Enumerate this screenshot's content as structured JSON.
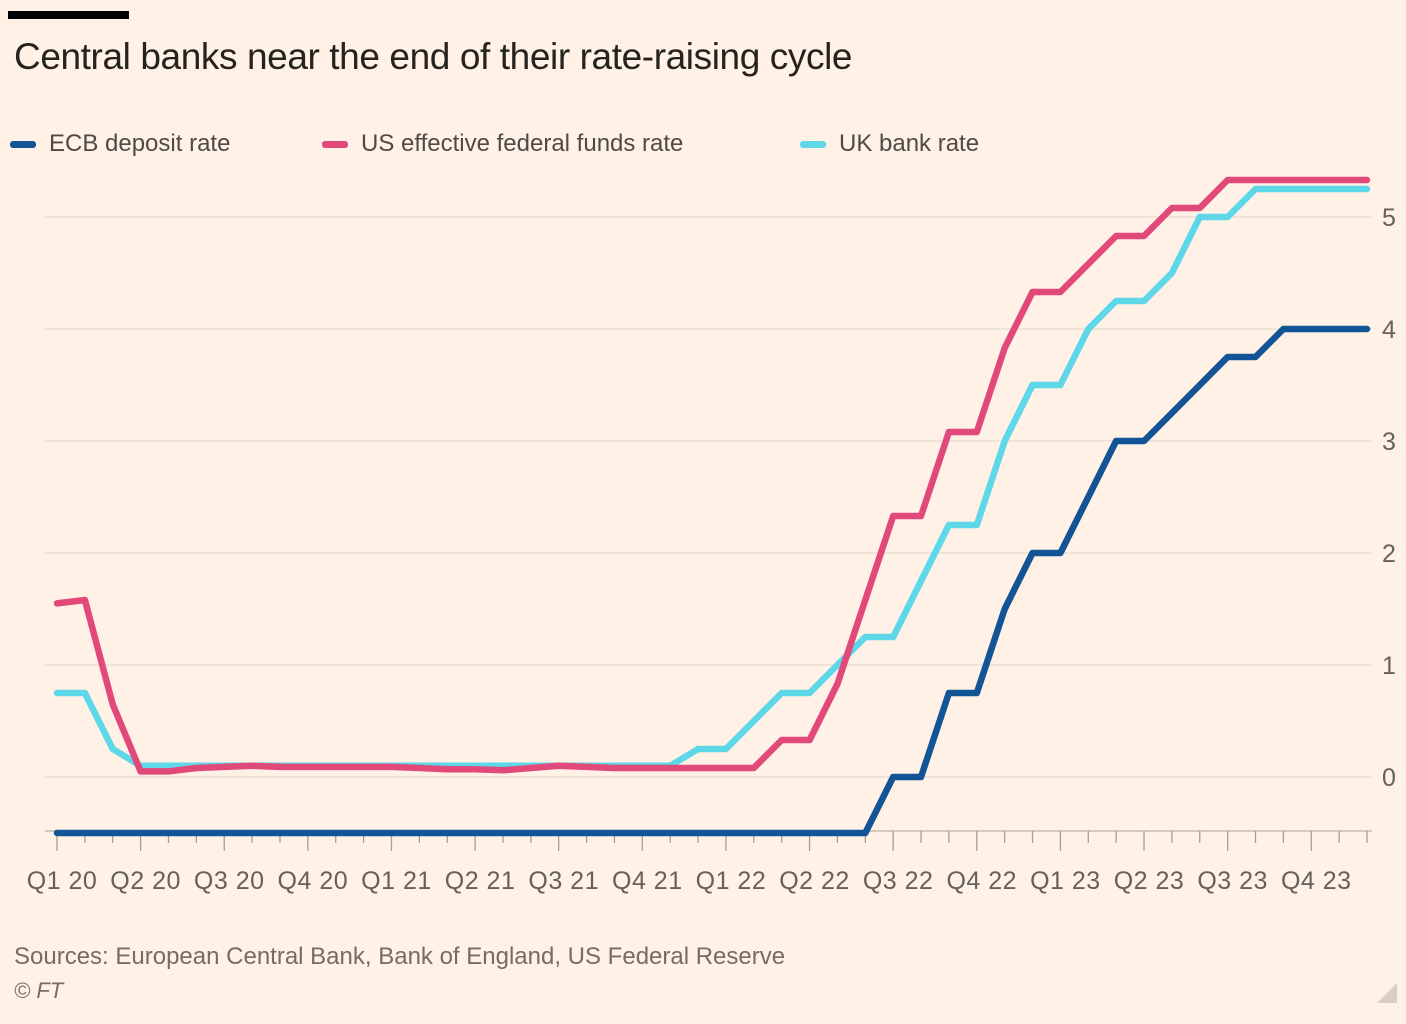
{
  "header": {
    "title": "Central banks near the end of their rate-raising cycle"
  },
  "legend": {
    "items": [
      {
        "label": "ECB deposit rate",
        "color": "#135496"
      },
      {
        "label": "US effective federal funds rate",
        "color": "#e2497b"
      },
      {
        "label": "UK bank rate",
        "color": "#5ed7e9"
      }
    ]
  },
  "footer": {
    "sources": "Sources: European Central Bank, Bank of England, US Federal Reserve",
    "copyright": "© FT"
  },
  "colors": {
    "background": "#fff1e5",
    "gridline": "#eadfd3",
    "axis_line": "#c9bdb1",
    "tick": "#a99d92",
    "axis_text": "#66605c",
    "title_text": "#26231e",
    "resize_triangle": "#d9cec2"
  },
  "chart_data": {
    "type": "line",
    "title": "Central banks near the end of their rate-raising cycle",
    "x_unit": "month",
    "x": [
      "2020-01",
      "2020-02",
      "2020-03",
      "2020-04",
      "2020-05",
      "2020-06",
      "2020-07",
      "2020-08",
      "2020-09",
      "2020-10",
      "2020-11",
      "2020-12",
      "2021-01",
      "2021-02",
      "2021-03",
      "2021-04",
      "2021-05",
      "2021-06",
      "2021-07",
      "2021-08",
      "2021-09",
      "2021-10",
      "2021-11",
      "2021-12",
      "2022-01",
      "2022-02",
      "2022-03",
      "2022-04",
      "2022-05",
      "2022-06",
      "2022-07",
      "2022-08",
      "2022-09",
      "2022-10",
      "2022-11",
      "2022-12",
      "2023-01",
      "2023-02",
      "2023-03",
      "2023-04",
      "2023-05",
      "2023-06",
      "2023-07",
      "2023-08",
      "2023-09",
      "2023-10",
      "2023-11",
      "2023-12"
    ],
    "xtick_labels": [
      "Q1 20",
      "Q2 20",
      "Q3 20",
      "Q4 20",
      "Q1 21",
      "Q2 21",
      "Q3 21",
      "Q4 21",
      "Q1 22",
      "Q2 22",
      "Q3 22",
      "Q4 22",
      "Q1 23",
      "Q2 23",
      "Q3 23",
      "Q4 23"
    ],
    "months_per_xtick": 3,
    "ylim": [
      -0.5,
      5.5
    ],
    "yticks": [
      0,
      1,
      2,
      3,
      4,
      5
    ],
    "grid": "horizontal",
    "legend_position": "top",
    "series": [
      {
        "name": "ECB deposit rate",
        "color": "#135496",
        "values": [
          -0.5,
          -0.5,
          -0.5,
          -0.5,
          -0.5,
          -0.5,
          -0.5,
          -0.5,
          -0.5,
          -0.5,
          -0.5,
          -0.5,
          -0.5,
          -0.5,
          -0.5,
          -0.5,
          -0.5,
          -0.5,
          -0.5,
          -0.5,
          -0.5,
          -0.5,
          -0.5,
          -0.5,
          -0.5,
          -0.5,
          -0.5,
          -0.5,
          -0.5,
          -0.5,
          0.0,
          0.0,
          0.75,
          0.75,
          1.5,
          2.0,
          2.0,
          2.5,
          3.0,
          3.0,
          3.25,
          3.5,
          3.75,
          3.75,
          4.0,
          4.0,
          4.0,
          4.0
        ]
      },
      {
        "name": "US effective federal funds rate",
        "color": "#e2497b",
        "values": [
          1.55,
          1.58,
          0.65,
          0.05,
          0.05,
          0.08,
          0.09,
          0.1,
          0.09,
          0.09,
          0.09,
          0.09,
          0.09,
          0.08,
          0.07,
          0.07,
          0.06,
          0.08,
          0.1,
          0.09,
          0.08,
          0.08,
          0.08,
          0.08,
          0.08,
          0.08,
          0.33,
          0.33,
          0.83,
          1.58,
          2.33,
          2.33,
          3.08,
          3.08,
          3.83,
          4.33,
          4.33,
          4.58,
          4.83,
          4.83,
          5.08,
          5.08,
          5.33,
          5.33,
          5.33,
          5.33,
          5.33,
          5.33
        ]
      },
      {
        "name": "UK bank rate",
        "color": "#5ed7e9",
        "values": [
          0.75,
          0.75,
          0.25,
          0.1,
          0.1,
          0.1,
          0.1,
          0.1,
          0.1,
          0.1,
          0.1,
          0.1,
          0.1,
          0.1,
          0.1,
          0.1,
          0.1,
          0.1,
          0.1,
          0.1,
          0.1,
          0.1,
          0.1,
          0.25,
          0.25,
          0.5,
          0.75,
          0.75,
          1.0,
          1.25,
          1.25,
          1.75,
          2.25,
          2.25,
          3.0,
          3.5,
          3.5,
          4.0,
          4.25,
          4.25,
          4.5,
          5.0,
          5.0,
          5.25,
          5.25,
          5.25,
          5.25,
          5.25
        ]
      }
    ]
  }
}
